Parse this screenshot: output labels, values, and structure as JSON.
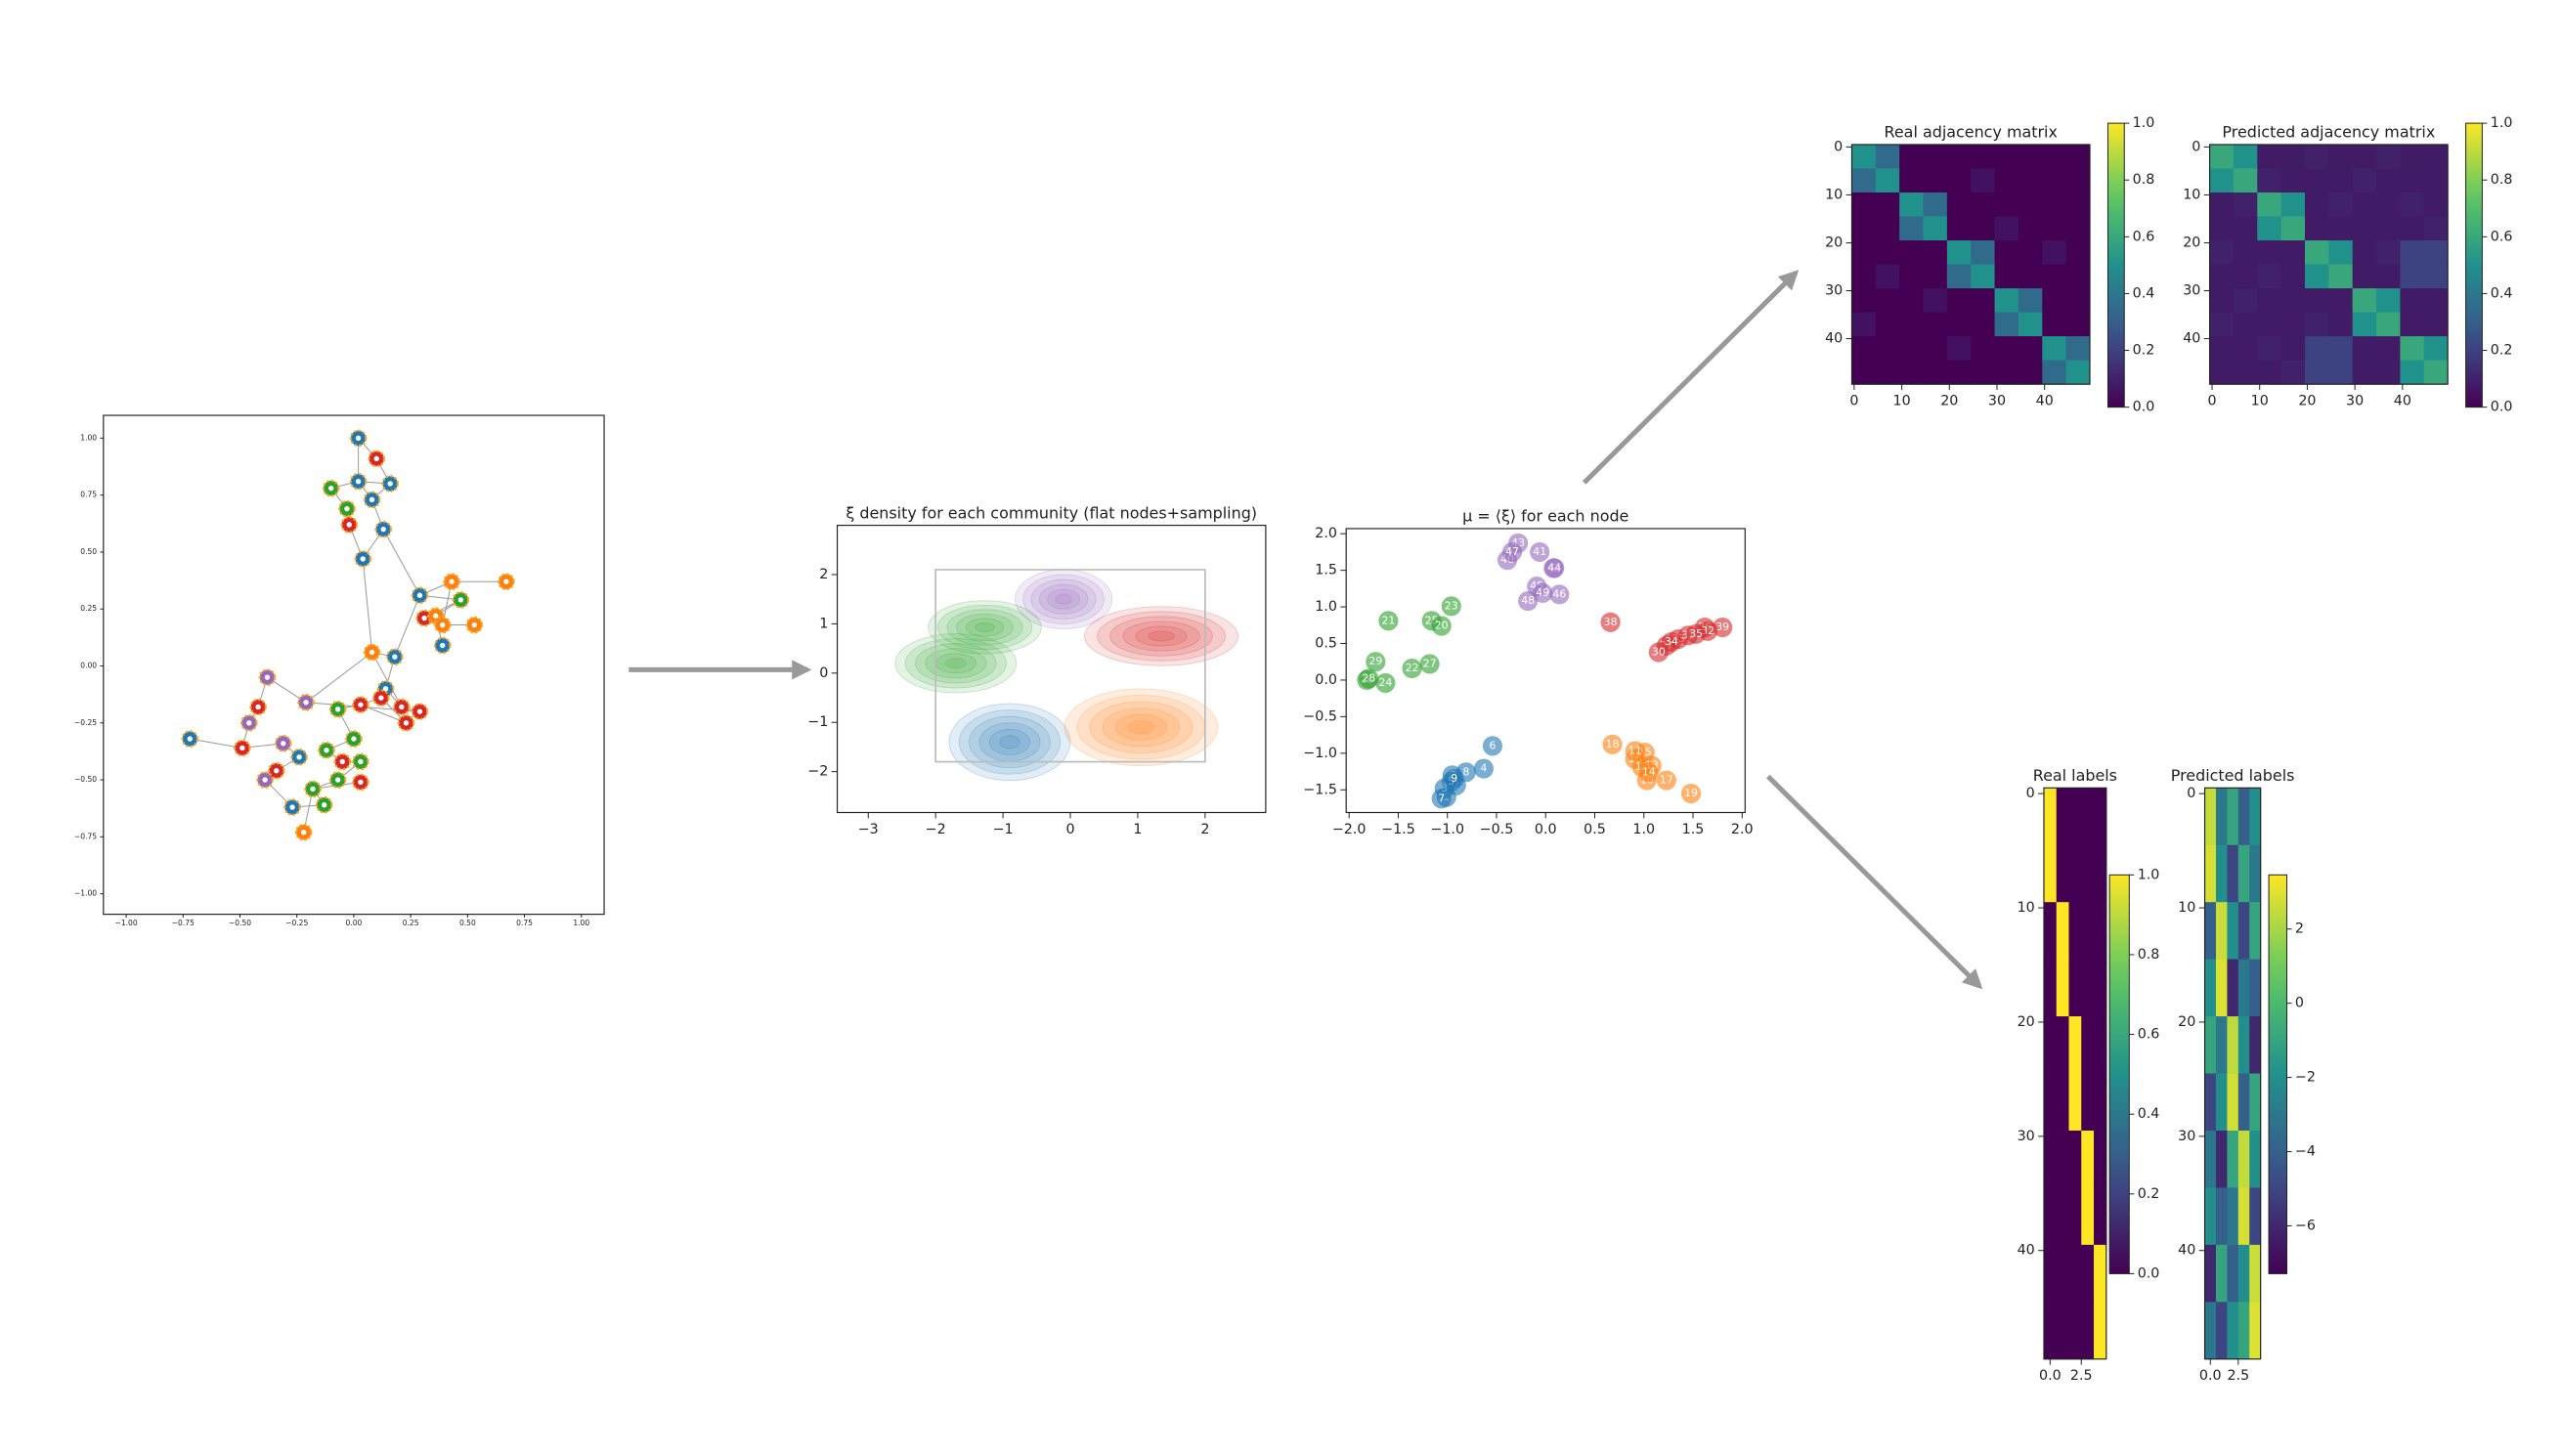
{
  "chart_data": [
    {
      "type": "network",
      "palette": [
        "#1f77b4",
        "#ff7f0e",
        "#2ca02c",
        "#d62728",
        "#9467bd"
      ],
      "xlim": [
        -1.1,
        1.1
      ],
      "ylim": [
        -1.09,
        1.1
      ],
      "xticks": [
        {
          "value": -1,
          "label": "−1.00"
        },
        {
          "value": -0.75,
          "label": "−0.75"
        },
        {
          "value": -0.5,
          "label": "−0.50"
        },
        {
          "value": -0.25,
          "label": "−0.25"
        },
        {
          "value": 0,
          "label": "0.00"
        },
        {
          "value": 0.25,
          "label": "0.25"
        },
        {
          "value": 0.5,
          "label": "0.50"
        },
        {
          "value": 0.75,
          "label": "0.75"
        },
        {
          "value": 1,
          "label": "1.00"
        }
      ],
      "yticks": [
        {
          "value": -1,
          "label": "−1.00"
        },
        {
          "value": -0.75,
          "label": "−0.75"
        },
        {
          "value": -0.5,
          "label": "−0.50"
        },
        {
          "value": -0.25,
          "label": "−0.25"
        },
        {
          "value": 0,
          "label": "0.00"
        },
        {
          "value": 0.25,
          "label": "0.25"
        },
        {
          "value": 0.5,
          "label": "0.50"
        },
        {
          "value": 0.75,
          "label": "0.75"
        },
        {
          "value": 1,
          "label": "1.00"
        }
      ],
      "x": [
        0.02,
        0.1,
        0.02,
        0.16,
        -0.1,
        0.08,
        -0.03,
        -0.02,
        0.13,
        0.04,
        0.29,
        0.43,
        0.67,
        0.47,
        0.31,
        0.36,
        0.39,
        0.53,
        0.39,
        0.08,
        0.18,
        -0.38,
        0.14,
        -0.21,
        -0.42,
        -0.07,
        0.03,
        0.21,
        0.29,
        0.12,
        -0.46,
        0.23,
        -0.72,
        -0.49,
        -0.31,
        0.0,
        -0.12,
        -0.05,
        0.03,
        -0.24,
        -0.34,
        -0.39,
        -0.07,
        0.03,
        -0.18,
        -0.27,
        -0.13,
        -0.22
      ],
      "y": [
        1.0,
        0.91,
        0.81,
        0.8,
        0.78,
        0.73,
        0.69,
        0.62,
        0.6,
        0.47,
        0.31,
        0.37,
        0.37,
        0.29,
        0.21,
        0.22,
        0.18,
        0.18,
        0.09,
        0.06,
        0.04,
        -0.05,
        -0.1,
        -0.16,
        -0.18,
        -0.19,
        -0.17,
        -0.18,
        -0.2,
        -0.14,
        -0.25,
        -0.25,
        -0.32,
        -0.36,
        -0.34,
        -0.32,
        -0.37,
        -0.42,
        -0.42,
        -0.4,
        -0.46,
        -0.5,
        -0.5,
        -0.51,
        -0.54,
        -0.62,
        -0.61,
        -0.73
      ],
      "community": [
        0,
        3,
        0,
        0,
        2,
        0,
        2,
        3,
        0,
        0,
        0,
        1,
        1,
        2,
        3,
        1,
        1,
        1,
        0,
        1,
        0,
        4,
        0,
        4,
        3,
        2,
        3,
        3,
        3,
        3,
        4,
        3,
        0,
        3,
        4,
        2,
        2,
        3,
        2,
        0,
        3,
        4,
        2,
        3,
        2,
        0,
        2,
        1
      ],
      "edges": [
        [
          0,
          1
        ],
        [
          0,
          2
        ],
        [
          1,
          3
        ],
        [
          2,
          3
        ],
        [
          2,
          5
        ],
        [
          3,
          5
        ],
        [
          4,
          6
        ],
        [
          4,
          2
        ],
        [
          5,
          8
        ],
        [
          6,
          7
        ],
        [
          7,
          9
        ],
        [
          8,
          9
        ],
        [
          8,
          10
        ],
        [
          9,
          19
        ],
        [
          10,
          11
        ],
        [
          10,
          13
        ],
        [
          11,
          12
        ],
        [
          13,
          14
        ],
        [
          13,
          15
        ],
        [
          14,
          16
        ],
        [
          15,
          18
        ],
        [
          16,
          17
        ],
        [
          10,
          20
        ],
        [
          19,
          20
        ],
        [
          20,
          22
        ],
        [
          19,
          23
        ],
        [
          21,
          23
        ],
        [
          21,
          24
        ],
        [
          22,
          27
        ],
        [
          23,
          28
        ],
        [
          24,
          30
        ],
        [
          25,
          26
        ],
        [
          26,
          29
        ],
        [
          27,
          28
        ],
        [
          29,
          31
        ],
        [
          30,
          33
        ],
        [
          32,
          33
        ],
        [
          33,
          34
        ],
        [
          34,
          39
        ],
        [
          35,
          36
        ],
        [
          36,
          37
        ],
        [
          37,
          38
        ],
        [
          25,
          35
        ],
        [
          38,
          42
        ],
        [
          39,
          40
        ],
        [
          40,
          41
        ],
        [
          41,
          45
        ],
        [
          42,
          44
        ],
        [
          43,
          44
        ],
        [
          44,
          46
        ],
        [
          45,
          46
        ],
        [
          47,
          44
        ],
        [
          31,
          26
        ],
        [
          16,
          11
        ],
        [
          27,
          19
        ]
      ]
    },
    {
      "type": "density",
      "title": "ξ density for each community (flat nodes+sampling)",
      "xlim": [
        -3.46,
        2.9
      ],
      "ylim": [
        -2.83,
        3
      ],
      "xticks": [
        {
          "value": -3,
          "label": "−3"
        },
        {
          "value": -2,
          "label": "−2"
        },
        {
          "value": -1,
          "label": "−1"
        },
        0,
        1,
        2
      ],
      "yticks": [
        {
          "value": -2,
          "label": "−2"
        },
        {
          "value": -1,
          "label": "−1"
        },
        0,
        1,
        2
      ],
      "box": {
        "x": [
          -2,
          2
        ],
        "y": [
          -1.8,
          2.1
        ]
      },
      "blobs": [
        {
          "color": "#9467bd",
          "x": -0.1,
          "y": 1.5,
          "sx": 0.6,
          "sy": 0.5
        },
        {
          "color": "#d62728",
          "x": 1.35,
          "y": 0.75,
          "sx": 0.95,
          "sy": 0.5
        },
        {
          "color": "#2ca02c",
          "x": -1.27,
          "y": 0.93,
          "sx": 0.7,
          "sy": 0.45
        },
        {
          "color": "#2ca02c",
          "x": -1.7,
          "y": 0.2,
          "sx": 0.75,
          "sy": 0.5
        },
        {
          "color": "#1f77b4",
          "x": -0.9,
          "y": -1.4,
          "sx": 0.75,
          "sy": 0.65
        },
        {
          "color": "#ff7f0e",
          "x": 1.05,
          "y": -1.1,
          "sx": 0.95,
          "sy": 0.65
        }
      ]
    },
    {
      "type": "scatter",
      "title": "μ = ⟨ξ⟩ for each node",
      "palette": [
        "#1f77b4",
        "#ff7f0e",
        "#2ca02c",
        "#d62728",
        "#9467bd"
      ],
      "xlim": [
        -2.03,
        2.03
      ],
      "ylim": [
        -1.81,
        2.07
      ],
      "xticks": [
        {
          "value": -2,
          "label": "−2.0"
        },
        {
          "value": -1.5,
          "label": "−1.5"
        },
        {
          "value": -1,
          "label": "−1.0"
        },
        {
          "value": -0.5,
          "label": "−0.5"
        },
        {
          "value": 0,
          "label": "0.0"
        },
        0.5,
        {
          "value": 1,
          "label": "1.0"
        },
        1.5,
        {
          "value": 2,
          "label": "2.0"
        }
      ],
      "yticks": [
        {
          "value": -1.5,
          "label": "−1.5"
        },
        {
          "value": -1,
          "label": "−1.0"
        },
        {
          "value": -0.5,
          "label": "−0.5"
        },
        {
          "value": 0,
          "label": "0.0"
        },
        0.5,
        {
          "value": 1,
          "label": "1.0"
        },
        1.5,
        {
          "value": 2,
          "label": "2.0"
        }
      ],
      "x": [
        -1.6,
        -1.16,
        -1.06,
        -0.96,
        -1.73,
        -1.36,
        -1.18,
        -1.82,
        -1.63,
        -1.8,
        -0.28,
        -0.06,
        -0.39,
        -0.34,
        0.08,
        0.09,
        -0.09,
        0.14,
        -0.18,
        -0.03,
        0.66,
        1.35,
        1.23,
        1.62,
        1.8,
        1.15,
        1.45,
        1.65,
        1.28,
        1.53,
        0.68,
        1.01,
        0.91,
        1.23,
        1.48,
        1.03,
        0.98,
        0.91,
        1.08,
        1.05,
        -0.54,
        -0.63,
        -0.81,
        -0.95,
        -1.01,
        -0.91,
        -1.03,
        -0.96,
        -1.06,
        -0.93
      ],
      "y": [
        0.81,
        0.81,
        0.74,
        1.01,
        0.25,
        0.16,
        0.22,
        0.0,
        -0.04,
        0.02,
        1.87,
        1.75,
        1.64,
        1.75,
        1.53,
        1.53,
        1.28,
        1.17,
        1.08,
        1.19,
        0.79,
        0.56,
        0.47,
        0.72,
        0.72,
        0.38,
        0.61,
        0.67,
        0.52,
        0.63,
        -0.88,
        -0.99,
        -1.08,
        -1.37,
        -1.55,
        -1.37,
        -1.19,
        -0.97,
        -1.17,
        -1.26,
        -0.9,
        -1.21,
        -1.26,
        -1.3,
        -1.6,
        -1.44,
        -1.48,
        -1.39,
        -1.62,
        -1.35
      ],
      "labels": [
        21,
        25,
        20,
        23,
        29,
        22,
        27,
        26,
        24,
        28,
        43,
        41,
        40,
        47,
        42,
        44,
        45,
        46,
        48,
        49,
        38,
        33,
        37,
        36,
        39,
        30,
        31,
        32,
        34,
        35,
        18,
        15,
        16,
        17,
        19,
        10,
        12,
        11,
        13,
        14,
        6,
        4,
        8,
        0,
        1,
        2,
        3,
        5,
        7,
        9
      ],
      "community": [
        2,
        2,
        2,
        2,
        2,
        2,
        2,
        2,
        2,
        2,
        4,
        4,
        4,
        4,
        4,
        4,
        4,
        4,
        4,
        4,
        3,
        3,
        3,
        3,
        3,
        3,
        3,
        3,
        3,
        3,
        1,
        1,
        1,
        1,
        1,
        1,
        1,
        1,
        1,
        1,
        0,
        0,
        0,
        0,
        0,
        0,
        0,
        0,
        0,
        0
      ]
    },
    {
      "type": "heatmap",
      "title": "Real adjacency matrix",
      "xlim": [
        -0.5,
        49.5
      ],
      "ylim": [
        49.5,
        -0.5
      ],
      "xticks": [
        0,
        10,
        20,
        30,
        40
      ],
      "yticks": [
        0,
        10,
        20,
        30,
        40
      ],
      "clim": [
        0,
        1
      ],
      "cticks": [
        {
          "value": 0,
          "label": "0.0"
        },
        0.2,
        0.4,
        0.6,
        0.8,
        {
          "value": 1,
          "label": "1.0"
        }
      ],
      "values": [
        [
          0.5,
          0.35,
          0,
          0,
          0,
          0,
          0,
          0,
          0,
          0
        ],
        [
          0.35,
          0.5,
          0,
          0,
          0,
          0.05,
          0,
          0,
          0,
          0
        ],
        [
          0,
          0,
          0.5,
          0.35,
          0,
          0,
          0,
          0,
          0,
          0
        ],
        [
          0,
          0,
          0.35,
          0.5,
          0,
          0,
          0.05,
          0,
          0,
          0
        ],
        [
          0,
          0,
          0,
          0,
          0.5,
          0.35,
          0,
          0,
          0.05,
          0
        ],
        [
          0,
          0.05,
          0,
          0,
          0.35,
          0.5,
          0,
          0,
          0,
          0
        ],
        [
          0,
          0,
          0,
          0.05,
          0,
          0,
          0.5,
          0.35,
          0,
          0
        ],
        [
          0.05,
          0,
          0,
          0,
          0,
          0,
          0.35,
          0.5,
          0,
          0
        ],
        [
          0,
          0,
          0,
          0,
          0.05,
          0,
          0,
          0,
          0.5,
          0.35
        ],
        [
          0,
          0,
          0,
          0,
          0,
          0,
          0,
          0,
          0.35,
          0.5
        ]
      ]
    },
    {
      "type": "heatmap",
      "title": "Predicted adjacency matrix",
      "xlim": [
        -0.5,
        49.5
      ],
      "ylim": [
        49.5,
        -0.5
      ],
      "xticks": [
        0,
        10,
        20,
        30,
        40
      ],
      "yticks": [
        0,
        10,
        20,
        30,
        40
      ],
      "clim": [
        0,
        1
      ],
      "cticks": [
        {
          "value": 0,
          "label": "0.0"
        },
        0.2,
        0.4,
        0.6,
        0.8,
        {
          "value": 1,
          "label": "1.0"
        }
      ],
      "values": [
        [
          0.6,
          0.5,
          0.08,
          0.08,
          0.1,
          0.08,
          0.08,
          0.1,
          0.08,
          0.08
        ],
        [
          0.5,
          0.6,
          0.1,
          0.08,
          0.08,
          0.08,
          0.1,
          0.08,
          0.08,
          0.08
        ],
        [
          0.08,
          0.1,
          0.6,
          0.5,
          0.08,
          0.1,
          0.08,
          0.08,
          0.1,
          0.08
        ],
        [
          0.08,
          0.08,
          0.5,
          0.6,
          0.08,
          0.08,
          0.08,
          0.08,
          0.08,
          0.1
        ],
        [
          0.1,
          0.08,
          0.08,
          0.08,
          0.6,
          0.5,
          0.08,
          0.1,
          0.2,
          0.2
        ],
        [
          0.08,
          0.08,
          0.1,
          0.08,
          0.5,
          0.6,
          0.08,
          0.08,
          0.2,
          0.2
        ],
        [
          0.08,
          0.1,
          0.08,
          0.08,
          0.08,
          0.08,
          0.6,
          0.5,
          0.08,
          0.08
        ],
        [
          0.1,
          0.08,
          0.08,
          0.08,
          0.1,
          0.08,
          0.5,
          0.6,
          0.08,
          0.08
        ],
        [
          0.08,
          0.08,
          0.1,
          0.08,
          0.2,
          0.2,
          0.08,
          0.08,
          0.6,
          0.5
        ],
        [
          0.08,
          0.08,
          0.08,
          0.1,
          0.2,
          0.2,
          0.08,
          0.08,
          0.5,
          0.6
        ]
      ]
    },
    {
      "type": "heatmap",
      "title": "Real labels",
      "xlim": [
        -0.5,
        4.5
      ],
      "ylim": [
        49.5,
        -0.5
      ],
      "xticks": [
        {
          "value": 0,
          "label": "0.0"
        },
        2.5
      ],
      "yticks": [
        0,
        10,
        20,
        30,
        40
      ],
      "clim": [
        0,
        1
      ],
      "cticks": [
        {
          "value": 0,
          "label": "0.0"
        },
        0.2,
        0.4,
        0.6,
        0.8,
        {
          "value": 1,
          "label": "1.0"
        }
      ],
      "values": [
        [
          1,
          0,
          0,
          0,
          0
        ],
        [
          1,
          0,
          0,
          0,
          0
        ],
        [
          0,
          1,
          0,
          0,
          0
        ],
        [
          0,
          1,
          0,
          0,
          0
        ],
        [
          0,
          0,
          1,
          0,
          0
        ],
        [
          0,
          0,
          1,
          0,
          0
        ],
        [
          0,
          0,
          0,
          1,
          0
        ],
        [
          0,
          0,
          0,
          1,
          0
        ],
        [
          0,
          0,
          0,
          0,
          1
        ],
        [
          0,
          0,
          0,
          0,
          1
        ]
      ]
    },
    {
      "type": "heatmap",
      "title": "Predicted labels",
      "xlim": [
        -0.5,
        4.5
      ],
      "ylim": [
        49.5,
        -0.5
      ],
      "xticks": [
        {
          "value": 0,
          "label": "0.0"
        },
        2.5
      ],
      "yticks": [
        0,
        10,
        20,
        30,
        40
      ],
      "clim": [
        -7.29,
        3.46
      ],
      "cticks": [
        2,
        0,
        {
          "value": -2,
          "label": "−2"
        },
        {
          "value": -4,
          "label": "−4"
        },
        {
          "value": -6,
          "label": "−6"
        }
      ],
      "values": [
        [
          2.5,
          -3,
          -1,
          -4,
          -2
        ],
        [
          2.8,
          -2,
          -5,
          -1,
          -3
        ],
        [
          -4,
          2.6,
          -2,
          -5,
          -1
        ],
        [
          -2,
          2.9,
          -6,
          -3,
          -4
        ],
        [
          -1,
          -3,
          2.4,
          -2,
          -6
        ],
        [
          -5,
          -2,
          2.7,
          -4,
          -1
        ],
        [
          -3,
          -6,
          -1,
          2.5,
          -2
        ],
        [
          -2,
          -4,
          -3,
          2.8,
          -5
        ],
        [
          -6,
          -1,
          -4,
          -2,
          2.6
        ],
        [
          -3,
          -5,
          -2,
          -1,
          2.9
        ]
      ]
    }
  ]
}
